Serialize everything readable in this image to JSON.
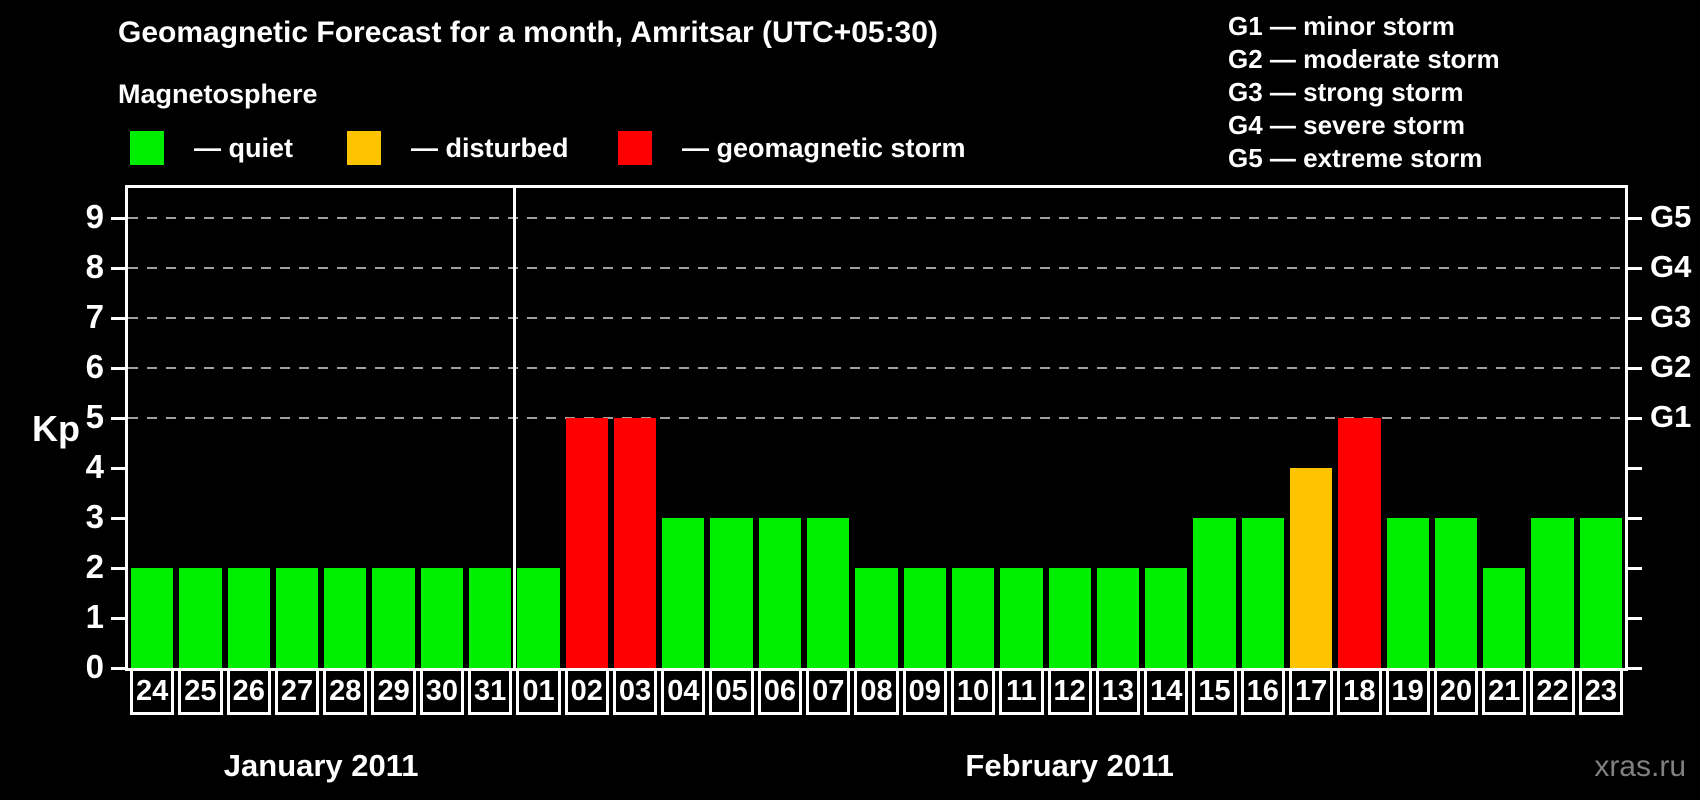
{
  "header": {
    "title": "Geomagnetic Forecast for a month, Amritsar (UTC+05:30)",
    "subtitle": "Magnetosphere",
    "legend": [
      {
        "status": "quiet",
        "label": "— quiet"
      },
      {
        "status": "disturbed",
        "label": "— disturbed"
      },
      {
        "status": "storm",
        "label": "— geomagnetic storm"
      }
    ],
    "g_scale": [
      "G1 — minor storm",
      "G2 — moderate storm",
      "G3 — strong storm",
      "G4 — severe storm",
      "G5 — extreme storm"
    ]
  },
  "colors": {
    "quiet": "#00EE00",
    "disturbed": "#FFC400",
    "storm": "#FF0000",
    "grid": "#A0A0A0",
    "axis": "#FFFFFF",
    "watermark": "#808080",
    "background": "#000000"
  },
  "chart_data": {
    "type": "bar",
    "ylabel": "Kp",
    "ylim": [
      0,
      9.6
    ],
    "yticks": [
      0,
      1,
      2,
      3,
      4,
      5,
      6,
      7,
      8,
      9
    ],
    "gridlines": [
      5,
      6,
      7,
      8,
      9
    ],
    "right_axis_labels": [
      {
        "kp": 5,
        "label": "G1"
      },
      {
        "kp": 6,
        "label": "G2"
      },
      {
        "kp": 7,
        "label": "G3"
      },
      {
        "kp": 8,
        "label": "G4"
      },
      {
        "kp": 9,
        "label": "G5"
      }
    ],
    "months": [
      {
        "label": "January 2011",
        "start": 0,
        "count": 8
      },
      {
        "label": "February 2011",
        "start": 8,
        "count": 23
      }
    ],
    "days": [
      {
        "date": "24",
        "kp": 2,
        "status": "quiet"
      },
      {
        "date": "25",
        "kp": 2,
        "status": "quiet"
      },
      {
        "date": "26",
        "kp": 2,
        "status": "quiet"
      },
      {
        "date": "27",
        "kp": 2,
        "status": "quiet"
      },
      {
        "date": "28",
        "kp": 2,
        "status": "quiet"
      },
      {
        "date": "29",
        "kp": 2,
        "status": "quiet"
      },
      {
        "date": "30",
        "kp": 2,
        "status": "quiet"
      },
      {
        "date": "31",
        "kp": 2,
        "status": "quiet"
      },
      {
        "date": "01",
        "kp": 2,
        "status": "quiet"
      },
      {
        "date": "02",
        "kp": 5,
        "status": "storm"
      },
      {
        "date": "03",
        "kp": 5,
        "status": "storm"
      },
      {
        "date": "04",
        "kp": 3,
        "status": "quiet"
      },
      {
        "date": "05",
        "kp": 3,
        "status": "quiet"
      },
      {
        "date": "06",
        "kp": 3,
        "status": "quiet"
      },
      {
        "date": "07",
        "kp": 3,
        "status": "quiet"
      },
      {
        "date": "08",
        "kp": 2,
        "status": "quiet"
      },
      {
        "date": "09",
        "kp": 2,
        "status": "quiet"
      },
      {
        "date": "10",
        "kp": 2,
        "status": "quiet"
      },
      {
        "date": "11",
        "kp": 2,
        "status": "quiet"
      },
      {
        "date": "12",
        "kp": 2,
        "status": "quiet"
      },
      {
        "date": "13",
        "kp": 2,
        "status": "quiet"
      },
      {
        "date": "14",
        "kp": 2,
        "status": "quiet"
      },
      {
        "date": "15",
        "kp": 3,
        "status": "quiet"
      },
      {
        "date": "16",
        "kp": 3,
        "status": "quiet"
      },
      {
        "date": "17",
        "kp": 4,
        "status": "disturbed"
      },
      {
        "date": "18",
        "kp": 5,
        "status": "storm"
      },
      {
        "date": "19",
        "kp": 3,
        "status": "quiet"
      },
      {
        "date": "20",
        "kp": 3,
        "status": "quiet"
      },
      {
        "date": "21",
        "kp": 2,
        "status": "quiet"
      },
      {
        "date": "22",
        "kp": 3,
        "status": "quiet"
      },
      {
        "date": "23",
        "kp": 3,
        "status": "quiet"
      }
    ]
  },
  "watermark": "xras.ru"
}
